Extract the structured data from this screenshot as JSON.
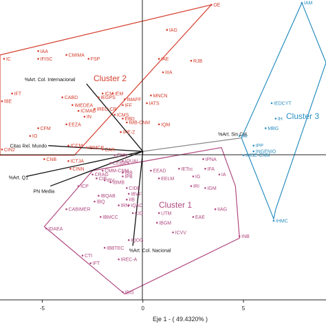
{
  "chart_data": {
    "type": "scatter",
    "xlabel": "Eje 1 - ( 49.4320% )",
    "ylabel": "",
    "xlim": [
      -7.1,
      9.1
    ],
    "ylim": [
      -7.7,
      7.85
    ],
    "x_ticks": [
      -5,
      0,
      5
    ],
    "clusters": [
      {
        "name": "Cluster 1",
        "color": "#b0487f",
        "hull": [
          [
            -4.9,
            -3.9
          ],
          [
            -2.5,
            -1.0
          ],
          [
            1.2,
            -0.3
          ],
          [
            3.9,
            0.2
          ],
          [
            4.6,
            -1.8
          ],
          [
            4.8,
            -4.5
          ],
          [
            -0.9,
            -7.4
          ]
        ],
        "points": [
          {
            "label": "IDAEA",
            "x": -4.8,
            "y": -4.0
          },
          {
            "label": "CABIMER",
            "x": -3.8,
            "y": -3.0
          },
          {
            "label": "ICP",
            "x": -3.2,
            "y": -1.8
          },
          {
            "label": "IBQ",
            "x": -2.4,
            "y": -2.6
          },
          {
            "label": "IBQAB",
            "x": -2.2,
            "y": -2.3
          },
          {
            "label": "IBMCC",
            "x": -2.1,
            "y": -3.4
          },
          {
            "label": "CTI",
            "x": -3.0,
            "y": -5.4
          },
          {
            "label": "IFT",
            "x": -2.6,
            "y": -5.8
          },
          {
            "label": "IBBTEC",
            "x": -1.9,
            "y": -5.0
          },
          {
            "label": "IREC-A",
            "x": -1.2,
            "y": -5.6
          },
          {
            "label": "IRN",
            "x": -1.2,
            "y": -2.8
          },
          {
            "label": "IBV",
            "x": -1.9,
            "y": -1.5
          },
          {
            "label": "IBB",
            "x": -1.0,
            "y": -1.1
          },
          {
            "label": "CRAG",
            "x": -2.5,
            "y": -1.2
          },
          {
            "label": "CIB",
            "x": -2.3,
            "y": -1.4
          },
          {
            "label": "CIDE",
            "x": -0.8,
            "y": -1.9
          },
          {
            "label": "IBVF",
            "x": -0.7,
            "y": -2.2
          },
          {
            "label": "IIB",
            "x": -0.8,
            "y": -2.5
          },
          {
            "label": "IQAC",
            "x": -0.7,
            "y": -2.8
          },
          {
            "label": "CID",
            "x": -0.5,
            "y": -3.2
          },
          {
            "label": "IQOG",
            "x": -0.7,
            "y": -4.6
          },
          {
            "label": "IBIS",
            "x": -1.0,
            "y": -7.3
          },
          {
            "label": "EEAD",
            "x": 0.4,
            "y": -1.0
          },
          {
            "label": "EELM",
            "x": 0.8,
            "y": -1.4
          },
          {
            "label": "IETcc",
            "x": 1.8,
            "y": -0.9
          },
          {
            "label": "IG",
            "x": 2.5,
            "y": -1.3
          },
          {
            "label": "IRI",
            "x": 2.4,
            "y": -1.8
          },
          {
            "label": "UTM",
            "x": 0.8,
            "y": -3.2
          },
          {
            "label": "IBGM",
            "x": 0.7,
            "y": -3.7
          },
          {
            "label": "ICVV",
            "x": 1.5,
            "y": -4.2
          },
          {
            "label": "EAE",
            "x": 2.5,
            "y": -3.4
          },
          {
            "label": "IPNA",
            "x": 3.0,
            "y": -0.4
          },
          {
            "label": "IFA",
            "x": 3.1,
            "y": -0.9
          },
          {
            "label": "IA",
            "x": 3.8,
            "y": -1.2
          },
          {
            "label": "IGM",
            "x": 3.1,
            "y": -1.9
          },
          {
            "label": "IIAG",
            "x": 3.6,
            "y": -3.0
          },
          {
            "label": "INB",
            "x": 4.8,
            "y": -4.4
          },
          {
            "label": "IQUAL",
            "x": -1.0,
            "y": -0.5
          },
          {
            "label": "CEBAS",
            "x": -1.6,
            "y": -0.6
          },
          {
            "label": "IPB",
            "x": -1.0,
            "y": -1.3
          },
          {
            "label": "IBMB",
            "x": -1.6,
            "y": -1.6
          },
          {
            "label": "CMM-CNM",
            "x": -2.0,
            "y": -1.0
          },
          {
            "label": "CNN",
            "x": -1.4,
            "y": -0.2
          }
        ]
      },
      {
        "name": "Cluster 2",
        "color": "#d43c2c",
        "hull": [
          [
            -7.1,
            5.0
          ],
          [
            3.4,
            7.6
          ],
          [
            -3.4,
            -0.2
          ],
          [
            -7.1,
            -0.2
          ]
        ],
        "points": [
          {
            "label": "IAA",
            "x": -5.2,
            "y": 5.2
          },
          {
            "label": "IFISC",
            "x": -5.2,
            "y": 4.8
          },
          {
            "label": "CMIMA",
            "x": -3.8,
            "y": 5.0
          },
          {
            "label": "FSP",
            "x": -2.7,
            "y": 4.8
          },
          {
            "label": "IAG",
            "x": 1.2,
            "y": 6.3
          },
          {
            "label": "IAE",
            "x": 0.8,
            "y": 4.8
          },
          {
            "label": "RJB",
            "x": 2.4,
            "y": 4.7
          },
          {
            "label": "IIIA",
            "x": 1.0,
            "y": 4.1
          },
          {
            "label": "OE",
            "x": 3.4,
            "y": 7.6
          },
          {
            "label": "IC",
            "x": -6.9,
            "y": 4.8
          },
          {
            "label": "IFT",
            "x": -6.5,
            "y": 3.0
          },
          {
            "label": "IBE",
            "x": -7.0,
            "y": 2.6
          },
          {
            "label": "CABD",
            "x": -4.0,
            "y": 2.8
          },
          {
            "label": "IMEDEA",
            "x": -3.5,
            "y": 2.4
          },
          {
            "label": "ICMAB",
            "x": -3.2,
            "y": 2.1
          },
          {
            "label": "IEM",
            "x": -1.5,
            "y": 3.0
          },
          {
            "label": "IEGPS",
            "x": -2.2,
            "y": 2.8
          },
          {
            "label": "IMAFF",
            "x": -0.9,
            "y": 2.7
          },
          {
            "label": "IFF",
            "x": -1.0,
            "y": 2.4
          },
          {
            "label": "MNCN",
            "x": 0.4,
            "y": 2.9
          },
          {
            "label": "IATS",
            "x": 0.2,
            "y": 2.5
          },
          {
            "label": "EBD",
            "x": -1.0,
            "y": 1.7
          },
          {
            "label": "IMB-CNM",
            "x": -0.8,
            "y": 1.5
          },
          {
            "label": "IQM",
            "x": 0.8,
            "y": 1.4
          },
          {
            "label": "IPE-Z",
            "x": -1.1,
            "y": 1.0
          },
          {
            "label": "ICMS",
            "x": -1.4,
            "y": 1.9
          },
          {
            "label": "IREC-CR",
            "x": -2.4,
            "y": 2.2
          },
          {
            "label": "IN",
            "x": -2.9,
            "y": 1.8
          },
          {
            "label": "EEZA",
            "x": -3.8,
            "y": 1.4
          },
          {
            "label": "CFM",
            "x": -5.2,
            "y": 1.2
          },
          {
            "label": "IO",
            "x": -5.6,
            "y": 0.8
          },
          {
            "label": "ICCM",
            "x": -3.7,
            "y": 0.3
          },
          {
            "label": "IBMCP",
            "x": -2.8,
            "y": 0.2
          },
          {
            "label": "CAR",
            "x": -2.0,
            "y": 0.1
          },
          {
            "label": "CNB",
            "x": -4.9,
            "y": -0.4
          },
          {
            "label": "ICTJA",
            "x": -3.7,
            "y": -0.5
          },
          {
            "label": "CINN",
            "x": -3.6,
            "y": -0.9
          },
          {
            "label": "ICM",
            "x": -2.0,
            "y": 3.0
          },
          {
            "label": "CIN2",
            "x": -7.0,
            "y": 0.1
          }
        ]
      },
      {
        "name": "Cluster 3",
        "color": "#2a8fc0",
        "hull": [
          [
            7.9,
            7.7
          ],
          [
            9.1,
            4.6
          ],
          [
            6.6,
            -3.0
          ],
          [
            6.5,
            -3.5
          ],
          [
            4.9,
            0.7
          ]
        ],
        "points": [
          {
            "label": "IAM",
            "x": 7.9,
            "y": 7.7
          },
          {
            "label": "IEDCYT",
            "x": 6.4,
            "y": 2.5
          },
          {
            "label": "IH",
            "x": 6.6,
            "y": 1.7
          },
          {
            "label": "MBG",
            "x": 6.1,
            "y": 1.2
          },
          {
            "label": "IAI",
            "x": 4.8,
            "y": 0.8
          },
          {
            "label": "IPP",
            "x": 5.5,
            "y": 0.3
          },
          {
            "label": "INGENIO",
            "x": 5.5,
            "y": 0.0
          },
          {
            "label": "IMSE-CNM",
            "x": 5.0,
            "y": -0.2
          },
          {
            "label": "IHMC",
            "x": 6.5,
            "y": -3.6
          }
        ]
      }
    ],
    "vectors": [
      {
        "label": "%Art. Col. Internacional",
        "x": -2.8,
        "y": 3.5
      },
      {
        "label": "%Art. Sin Col.",
        "x": 4.9,
        "y": 0.7
      },
      {
        "label": "Citas Rel. Mundo",
        "x": -4.7,
        "y": 0.3
      },
      {
        "label": "%Art. Q1",
        "x": -5.8,
        "y": -1.3
      },
      {
        "label": "PN Media",
        "x": -4.6,
        "y": -1.8
      },
      {
        "label": "%Art. Col. Nacional",
        "x": -0.5,
        "y": -4.9
      }
    ],
    "grid": false
  }
}
